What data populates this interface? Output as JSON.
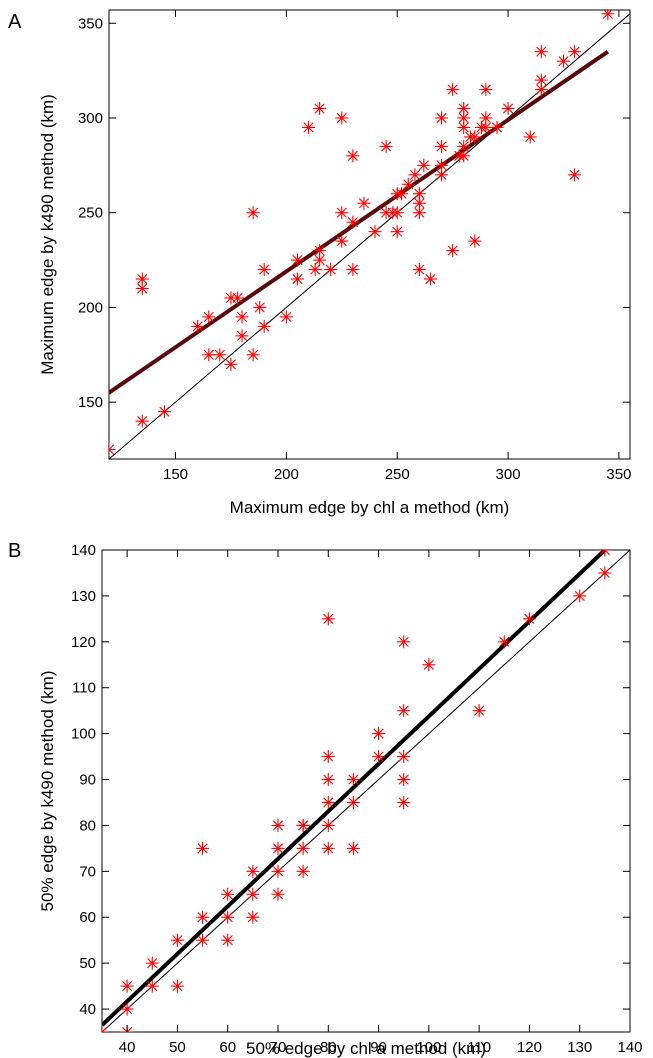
{
  "chart_data": [
    {
      "type": "scatter",
      "panel_label": "A",
      "title": "",
      "xlabel": "Maximum edge by chl a method (km)",
      "ylabel": "Maximum edge by k490 method (km)",
      "xlim": [
        120,
        355
      ],
      "ylim": [
        120,
        357
      ],
      "xticks": [
        150,
        200,
        250,
        300,
        350
      ],
      "yticks": [
        150,
        200,
        250,
        300,
        350
      ],
      "grid": false,
      "colors": {
        "points": "#ff0000",
        "fit_line": "#5a0a0a",
        "identity_line": "#000000"
      },
      "identity_line": {
        "x": [
          120,
          355
        ],
        "y": [
          120,
          355
        ]
      },
      "fit_line": {
        "x": [
          120,
          345
        ],
        "y": [
          155,
          335
        ]
      },
      "series": [
        {
          "x": [
            120,
            135,
            135,
            135,
            145,
            160,
            165,
            165,
            170,
            175,
            175,
            178,
            180,
            180,
            185,
            185,
            188,
            190,
            190,
            200,
            205,
            205,
            210,
            213,
            215,
            215,
            215,
            220,
            225,
            225,
            225,
            230,
            230,
            230,
            235,
            240,
            245,
            245,
            248,
            250,
            250,
            250,
            252,
            255,
            258,
            260,
            260,
            260,
            260,
            262,
            265,
            270,
            270,
            270,
            270,
            275,
            275,
            278,
            280,
            280,
            280,
            280,
            280,
            283,
            285,
            285,
            288,
            290,
            290,
            290,
            295,
            300,
            310,
            315,
            315,
            315,
            325,
            330,
            330,
            345
          ],
          "y": [
            125,
            140,
            210,
            215,
            145,
            190,
            175,
            195,
            175,
            170,
            205,
            205,
            185,
            195,
            175,
            250,
            200,
            190,
            220,
            195,
            215,
            225,
            295,
            220,
            225,
            230,
            305,
            220,
            235,
            250,
            300,
            220,
            245,
            280,
            255,
            240,
            250,
            285,
            250,
            240,
            250,
            260,
            260,
            265,
            270,
            250,
            255,
            260,
            220,
            275,
            215,
            270,
            275,
            285,
            300,
            230,
            315,
            280,
            280,
            285,
            295,
            300,
            305,
            290,
            235,
            290,
            295,
            295,
            300,
            315,
            295,
            305,
            290,
            315,
            320,
            335,
            330,
            335,
            270,
            355
          ]
        }
      ]
    },
    {
      "type": "scatter",
      "panel_label": "B",
      "title": "",
      "xlabel": "50% edge by chl a method (km)",
      "ylabel": "50% edge by k490 method (km)",
      "xlim": [
        35,
        140
      ],
      "ylim": [
        35,
        140
      ],
      "xticks": [
        40,
        50,
        60,
        70,
        80,
        90,
        100,
        110,
        120,
        130,
        140
      ],
      "yticks": [
        40,
        50,
        60,
        70,
        80,
        90,
        100,
        110,
        120,
        130,
        140
      ],
      "grid": false,
      "colors": {
        "points": "#ff0000",
        "fit_line": "#000000",
        "identity_line": "#000000"
      },
      "identity_line": {
        "x": [
          35,
          140
        ],
        "y": [
          35,
          140
        ]
      },
      "fit_line": {
        "x": [
          35,
          135
        ],
        "y": [
          36.5,
          140
        ]
      },
      "series": [
        {
          "x": [
            35,
            40,
            40,
            40,
            45,
            45,
            50,
            50,
            55,
            55,
            55,
            60,
            60,
            60,
            65,
            65,
            65,
            70,
            70,
            70,
            70,
            75,
            75,
            75,
            75,
            80,
            80,
            80,
            80,
            80,
            80,
            85,
            85,
            85,
            90,
            90,
            95,
            95,
            95,
            95,
            95,
            100,
            110,
            115,
            120,
            130,
            135,
            135
          ],
          "y": [
            35,
            35,
            40,
            45,
            45,
            50,
            45,
            55,
            55,
            60,
            75,
            55,
            60,
            65,
            60,
            65,
            70,
            65,
            70,
            75,
            80,
            70,
            75,
            80,
            80,
            75,
            80,
            85,
            90,
            95,
            125,
            75,
            85,
            90,
            95,
            100,
            85,
            90,
            95,
            105,
            120,
            115,
            105,
            120,
            125,
            130,
            135,
            140
          ]
        }
      ]
    }
  ]
}
